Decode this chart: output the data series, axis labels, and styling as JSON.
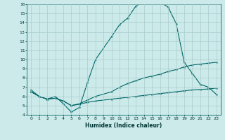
{
  "xlabel": "Humidex (Indice chaleur)",
  "bg_color": "#cceaea",
  "line_color": "#006666",
  "grid_color": "#aacccc",
  "xlim": [
    -0.5,
    23.5
  ],
  "ylim": [
    4,
    16
  ],
  "xticks": [
    0,
    1,
    2,
    3,
    4,
    5,
    6,
    7,
    8,
    9,
    10,
    11,
    12,
    13,
    14,
    15,
    16,
    17,
    18,
    19,
    20,
    21,
    22,
    23
  ],
  "yticks": [
    4,
    5,
    6,
    7,
    8,
    9,
    10,
    11,
    12,
    13,
    14,
    15,
    16
  ],
  "line1_x": [
    0,
    1,
    2,
    3,
    4,
    5,
    6,
    7,
    8,
    10,
    11,
    12,
    13,
    14,
    15,
    16,
    17,
    18,
    19,
    20,
    21,
    22,
    23
  ],
  "line1_y": [
    6.7,
    6.0,
    5.7,
    6.0,
    5.2,
    4.3,
    4.8,
    7.5,
    10.0,
    12.5,
    13.8,
    14.5,
    15.8,
    16.3,
    16.2,
    16.2,
    15.7,
    13.9,
    9.7,
    8.5,
    7.3,
    7.0,
    6.2
  ],
  "line2_x": [
    0,
    1,
    2,
    3,
    4,
    5,
    6,
    7,
    8,
    10,
    11,
    12,
    13,
    14,
    15,
    16,
    17,
    18,
    19,
    20,
    21,
    22,
    23
  ],
  "line2_y": [
    6.5,
    6.0,
    5.7,
    5.8,
    5.5,
    5.0,
    5.15,
    5.35,
    5.5,
    5.7,
    5.8,
    5.9,
    6.0,
    6.1,
    6.2,
    6.3,
    6.4,
    6.5,
    6.6,
    6.7,
    6.75,
    6.8,
    6.9
  ],
  "line3_x": [
    0,
    1,
    2,
    3,
    4,
    5,
    6,
    7,
    8,
    10,
    11,
    12,
    13,
    14,
    15,
    16,
    17,
    18,
    19,
    20,
    21,
    22,
    23
  ],
  "line3_y": [
    6.5,
    6.0,
    5.7,
    5.8,
    5.5,
    5.0,
    5.2,
    5.6,
    6.0,
    6.5,
    7.0,
    7.4,
    7.7,
    8.0,
    8.2,
    8.4,
    8.7,
    8.9,
    9.2,
    9.4,
    9.5,
    9.6,
    9.7
  ]
}
